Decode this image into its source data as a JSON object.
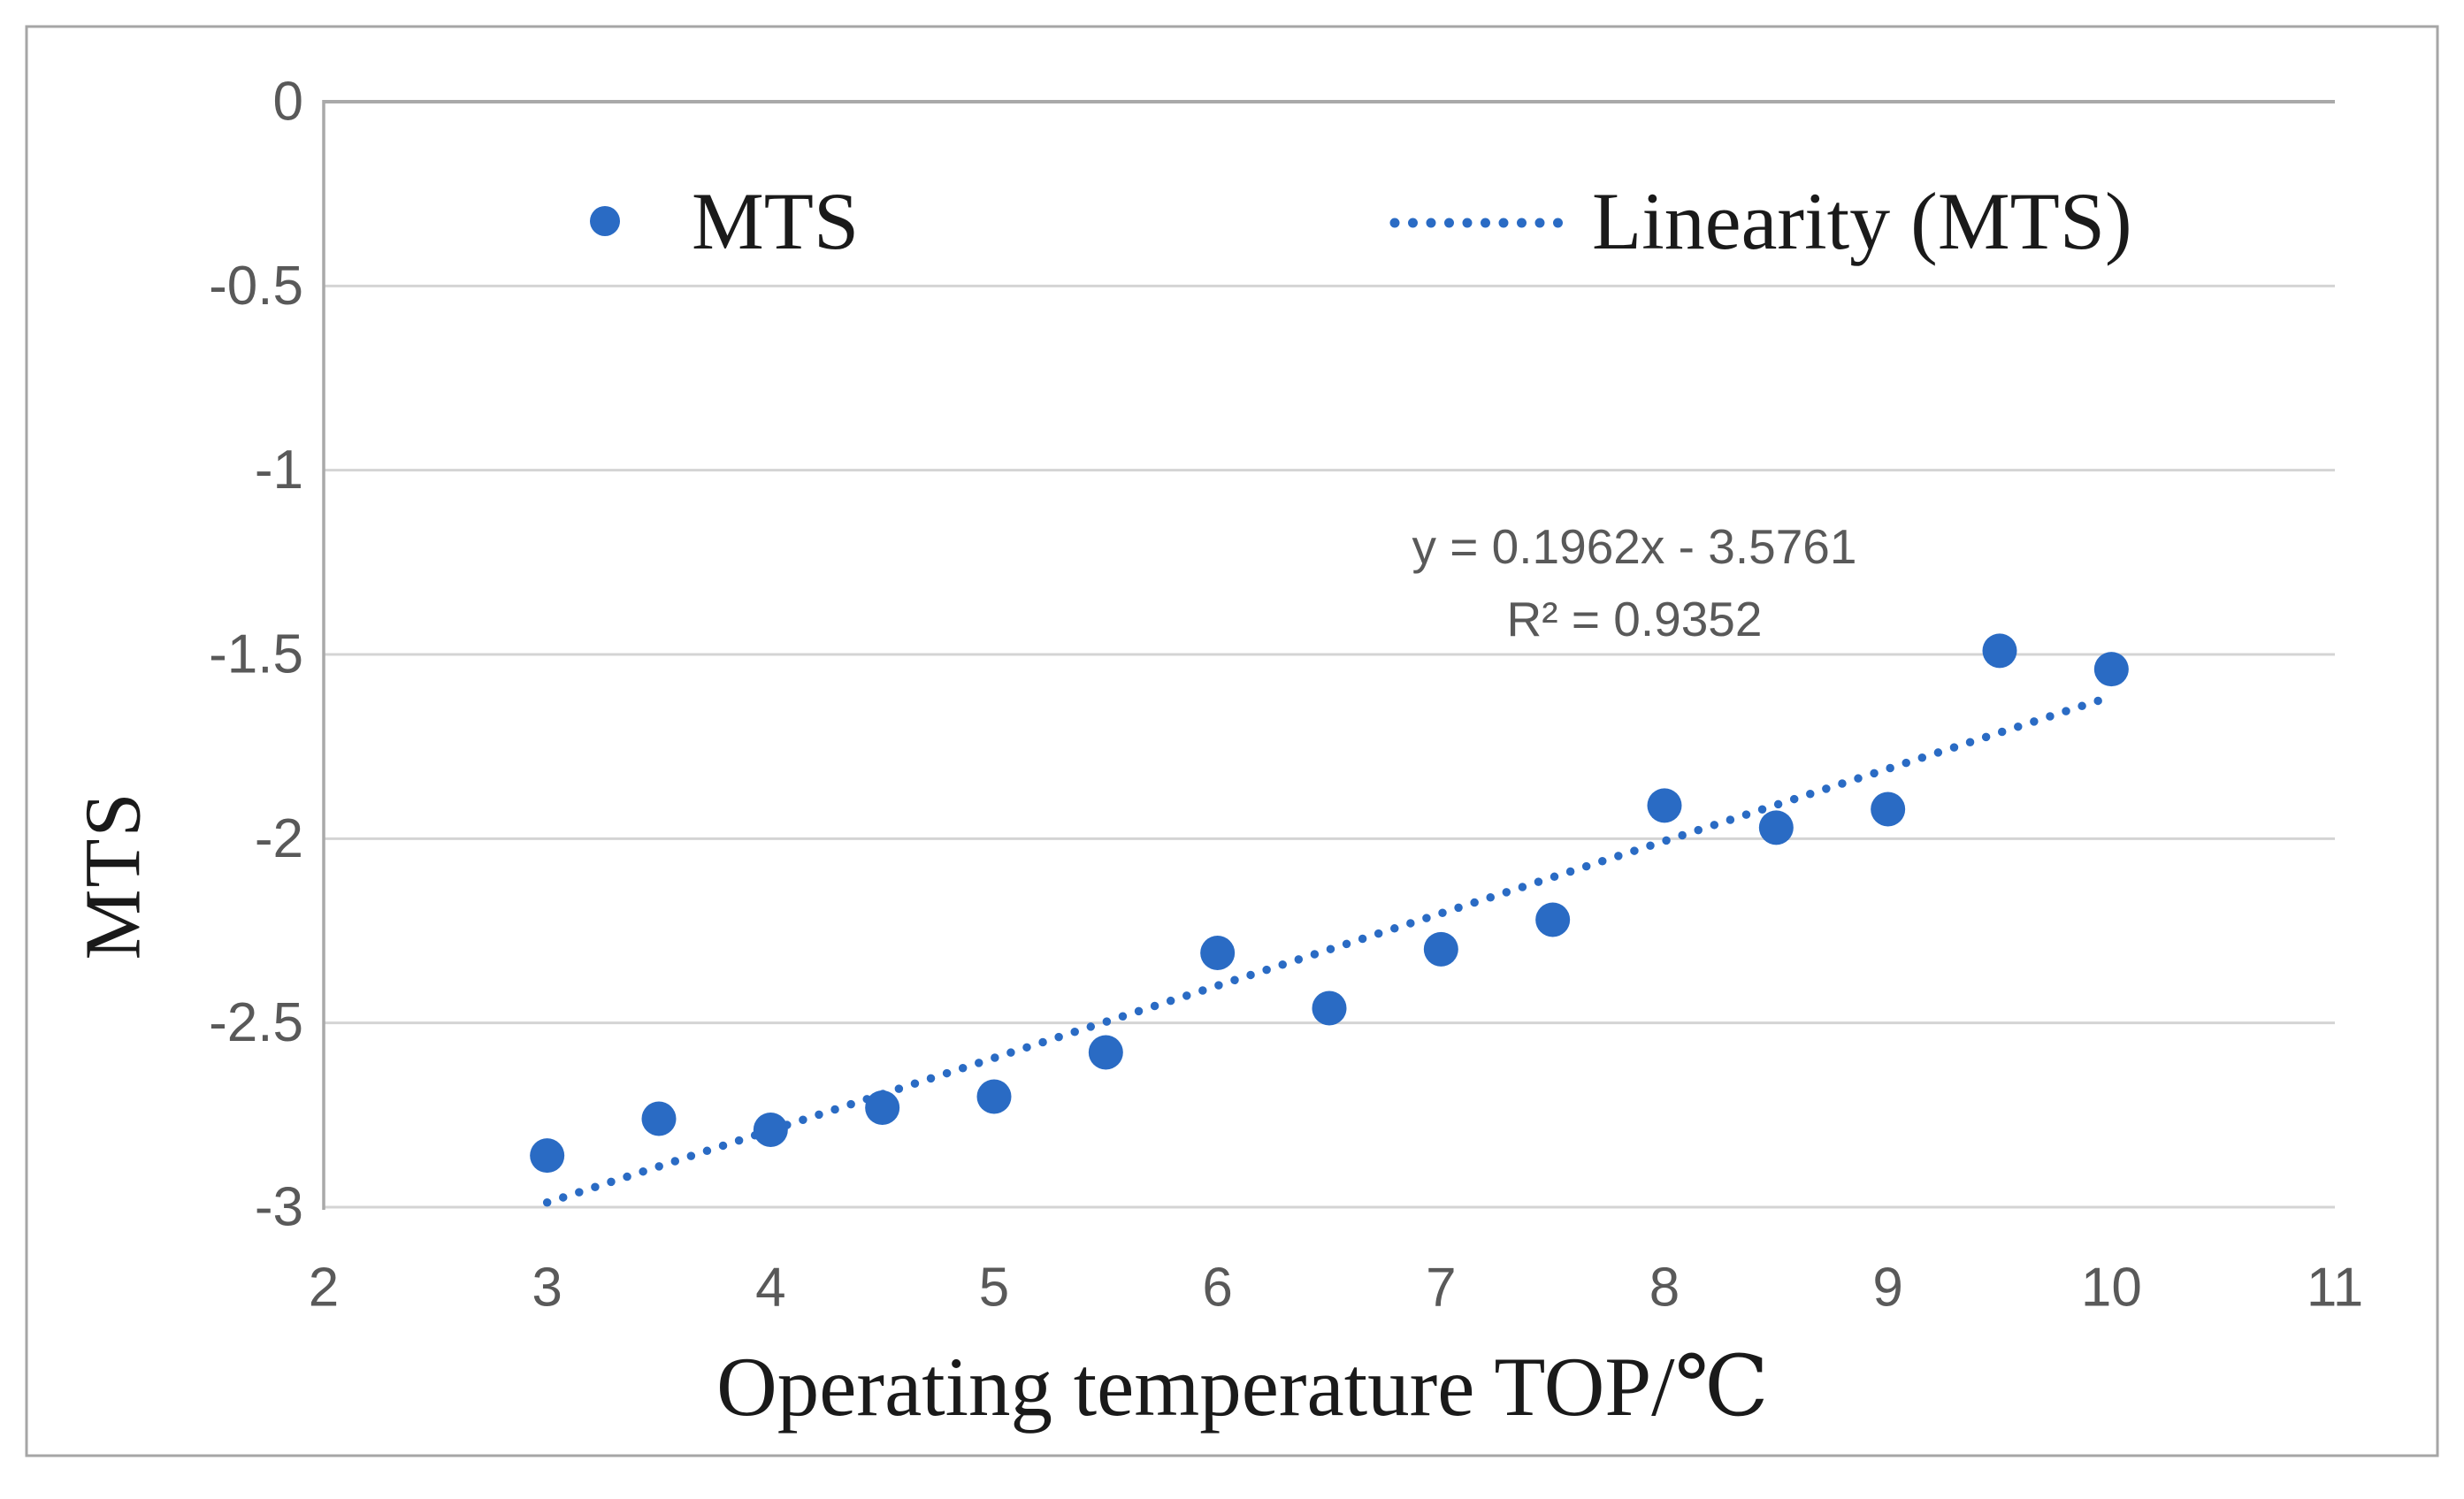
{
  "figure": {
    "background": "#ffffff",
    "border_color": "#a6a6a6"
  },
  "colors": {
    "series_blue": "#2a6bc4",
    "gridline": "#d4d4d4",
    "axis_line": "#a9a9a9",
    "tick_text": "#595959",
    "equation_text": "#595959",
    "title_text": "#1a1a1a"
  },
  "chart_data": {
    "type": "scatter",
    "title": "",
    "xlabel": "Operating temperature TOP/℃",
    "ylabel": "MTS",
    "x_tick_labels": [
      "2",
      "3",
      "4",
      "5",
      "6",
      "7",
      "8",
      "9",
      "10",
      "11"
    ],
    "y_tick_labels": [
      "0",
      "-0.5",
      "-1",
      "-1.5",
      "-2",
      "-2.5",
      "-3"
    ],
    "xlim": [
      2,
      11
    ],
    "ylim": [
      -3,
      0
    ],
    "grid": "horizontal-only",
    "legend": {
      "position": "top-inside",
      "items": [
        {
          "label": "MTS",
          "marker": "filled-dot"
        },
        {
          "label": "Linearity (MTS)",
          "marker": "dotted-line"
        }
      ]
    },
    "series": [
      {
        "name": "MTS",
        "type": "scatter",
        "marker": "circle",
        "color": "#2a6bc4",
        "points": [
          [
            3,
            -2.86
          ],
          [
            3.5,
            -2.76
          ],
          [
            4,
            -2.79
          ],
          [
            4.5,
            -2.73
          ],
          [
            5,
            -2.7
          ],
          [
            5.5,
            -2.58
          ],
          [
            6,
            -2.31
          ],
          [
            6.5,
            -2.46
          ],
          [
            7,
            -2.3
          ],
          [
            7.5,
            -2.22
          ],
          [
            8,
            -1.91
          ],
          [
            8.5,
            -1.97
          ],
          [
            9,
            -1.92
          ],
          [
            9.5,
            -1.49
          ],
          [
            10,
            -1.54
          ]
        ]
      }
    ],
    "trendline": {
      "name": "Linearity (MTS)",
      "style": "dotted",
      "color": "#2a6bc4",
      "slope": 0.1962,
      "intercept": -3.5761,
      "x_range": [
        3,
        10
      ],
      "equation_label": "y = 0.1962x - 3.5761",
      "r_squared_label": "R² = 0.9352"
    }
  }
}
